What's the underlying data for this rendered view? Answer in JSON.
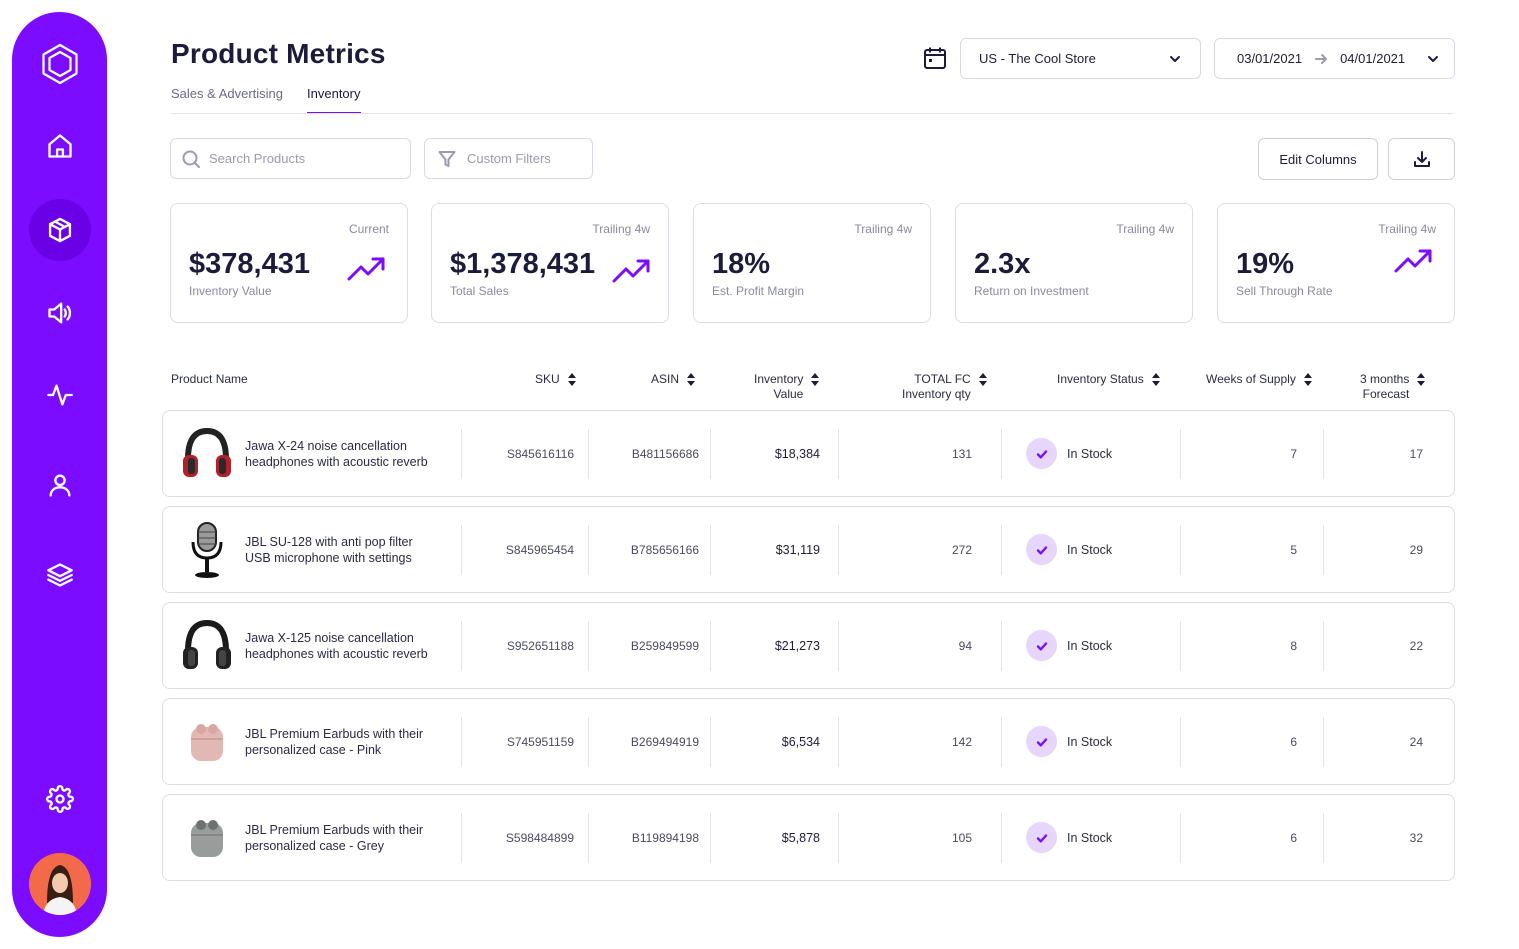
{
  "header": {
    "title": "Product Metrics",
    "tabs": [
      "Sales & Advertising",
      "Inventory"
    ],
    "active_tab": "Inventory",
    "store": "US - The Cool Store",
    "date_from": "03/01/2021",
    "date_to": "04/01/2021"
  },
  "toolbar": {
    "search_placeholder": "Search Products",
    "filters_label": "Custom Filters",
    "edit_columns_label": "Edit Columns"
  },
  "kpis": [
    {
      "period": "Current",
      "value": "$378,431",
      "label": "Inventory Value",
      "trend": true
    },
    {
      "period": "Trailing 4w",
      "value": "$1,378,431",
      "label": "Total Sales",
      "trend": true
    },
    {
      "period": "Trailing 4w",
      "value": "18%",
      "label": "Est. Profit Margin",
      "trend": false
    },
    {
      "period": "Trailing 4w",
      "value": "2.3x",
      "label": "Return on Investment",
      "trend": false
    },
    {
      "period": "Trailing 4w",
      "value": "19%",
      "label": "Sell Through Rate",
      "trend": true
    }
  ],
  "table": {
    "columns": {
      "product": "Product Name",
      "sku": "SKU",
      "asin": "ASIN",
      "inv_value_1": "Inventory",
      "inv_value_2": "Value",
      "fc_qty_1": "TOTAL FC",
      "fc_qty_2": "Inventory qty",
      "status": "Inventory Status",
      "weeks": "Weeks of Supply",
      "forecast_1": "3 months",
      "forecast_2": "Forecast"
    },
    "rows": [
      {
        "name_1": "Jawa X-24 noise cancellation",
        "name_2": "headphones with acoustic reverb",
        "image": "red-headphones-icon",
        "sku": "S845616116",
        "asin": "B481156686",
        "inv_value": "$18,384",
        "fc_qty": "131",
        "status": "In Stock",
        "weeks": "7",
        "forecast": "17"
      },
      {
        "name_1": "JBL SU-128 with anti pop filter",
        "name_2": "USB microphone with settings",
        "image": "microphone-icon",
        "sku": "S845965454",
        "asin": "B785656166",
        "inv_value": "$31,119",
        "fc_qty": "272",
        "status": "In Stock",
        "weeks": "5",
        "forecast": "29"
      },
      {
        "name_1": "Jawa X-125 noise cancellation",
        "name_2": "headphones with acoustic reverb",
        "image": "black-headphones-icon",
        "sku": "S952651188",
        "asin": "B259849599",
        "inv_value": "$21,273",
        "fc_qty": "94",
        "status": "In Stock",
        "weeks": "8",
        "forecast": "22"
      },
      {
        "name_1": "JBL Premium Earbuds with their",
        "name_2": "personalized case - Pink",
        "image": "pink-earbuds-icon",
        "sku": "S745951159",
        "asin": "B269494919",
        "inv_value": "$6,534",
        "fc_qty": "142",
        "status": "In Stock",
        "weeks": "6",
        "forecast": "24"
      },
      {
        "name_1": "JBL Premium Earbuds with their",
        "name_2": "personalized case - Grey",
        "image": "grey-earbuds-icon",
        "sku": "S598484899",
        "asin": "B119894198",
        "inv_value": "$5,878",
        "fc_qty": "105",
        "status": "In Stock",
        "weeks": "6",
        "forecast": "32"
      }
    ]
  },
  "sidebar": {
    "items": [
      "logo-icon",
      "home-icon",
      "box-icon",
      "speaker-icon",
      "activity-icon",
      "user-icon",
      "layers-icon",
      "settings-icon"
    ],
    "active": "box-icon"
  },
  "colors": {
    "accent": "#7b0cff",
    "check_bg": "#e6d6fb"
  }
}
